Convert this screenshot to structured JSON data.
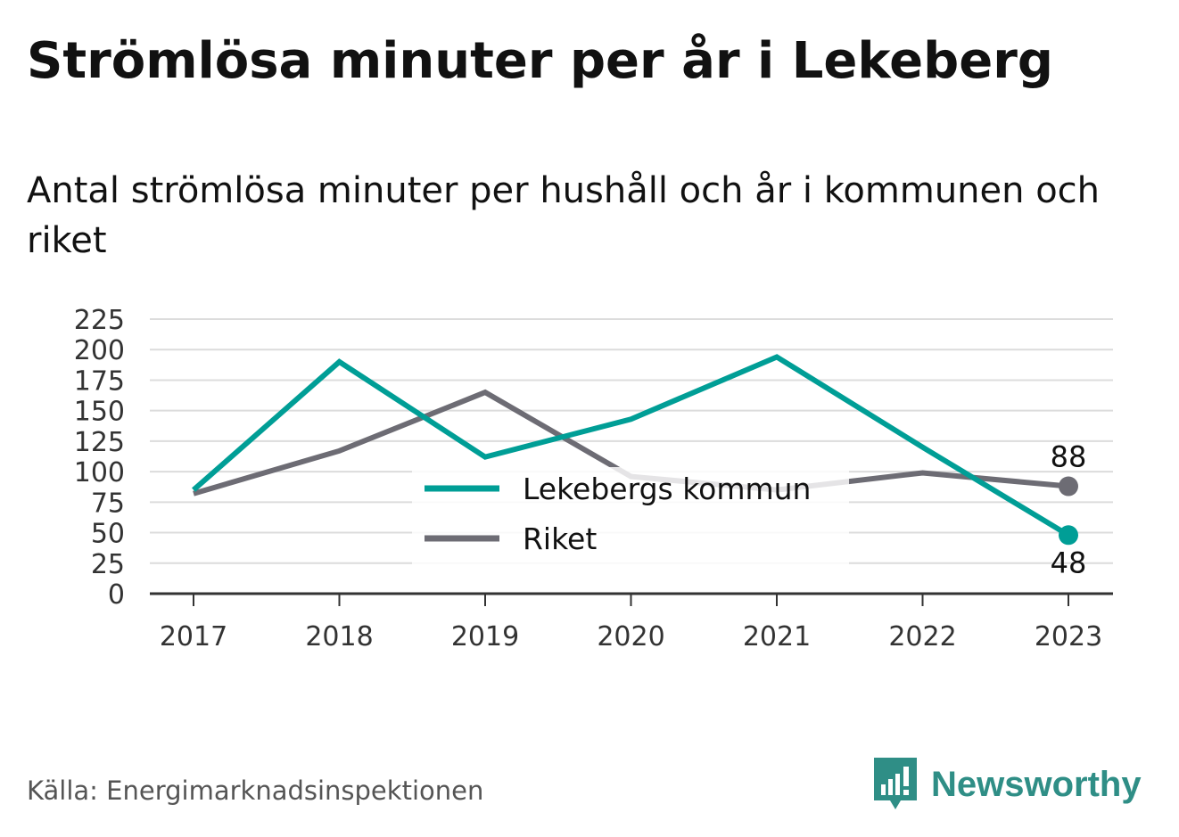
{
  "title": "Strömlösa minuter per år i Lekeberg",
  "subtitle": "Antal strömlösa minuter per hushåll och år i kommunen och riket",
  "source": "Källa: Energimarknadsinspektionen",
  "brand": {
    "name": "Newsworthy",
    "icon": "newsworthy-logo-icon",
    "color": "#2f8e86"
  },
  "chart_data": {
    "type": "line",
    "x": [
      "2017",
      "2018",
      "2019",
      "2020",
      "2021",
      "2022",
      "2023"
    ],
    "ylim": [
      0,
      225
    ],
    "yticks": [
      0,
      25,
      50,
      75,
      100,
      125,
      150,
      175,
      200,
      225
    ],
    "grid": true,
    "legend_position": "center",
    "series": [
      {
        "name": "Lekebergs kommun",
        "color": "#009e96",
        "values": [
          85,
          190,
          112,
          143,
          194,
          120,
          48
        ],
        "end_label": "48"
      },
      {
        "name": "Riket",
        "color": "#6d6c74",
        "values": [
          82,
          117,
          165,
          96,
          85,
          99,
          88
        ],
        "end_label": "88"
      }
    ]
  }
}
